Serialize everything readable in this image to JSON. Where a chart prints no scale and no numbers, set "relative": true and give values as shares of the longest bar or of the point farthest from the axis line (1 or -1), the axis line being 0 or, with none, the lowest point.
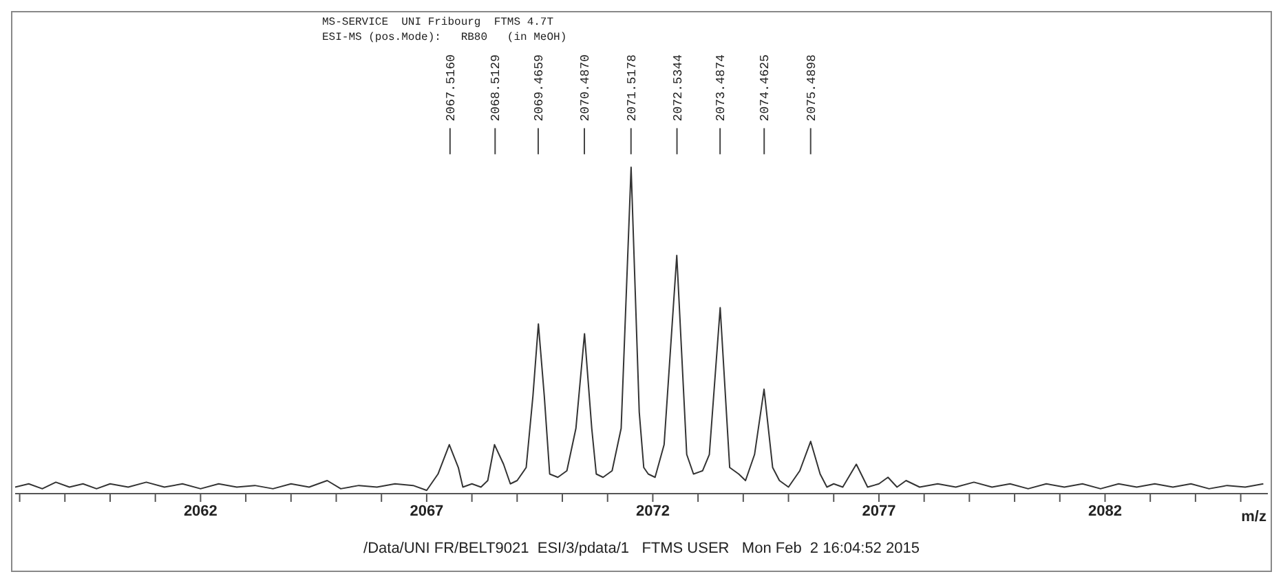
{
  "chart_data": {
    "type": "line",
    "title": "MS-SERVICE  UNI Fribourg  FTMS 4.7T",
    "subtitle": "ESI-MS (pos.Mode):   RB80   (in MeOH)",
    "xlabel": "m/z",
    "relative": true,
    "xlim": [
      2057.9,
      2085.6
    ],
    "xticks": [
      {
        "value": 2058,
        "label": null
      },
      {
        "value": 2059,
        "label": null
      },
      {
        "value": 2060,
        "label": null
      },
      {
        "value": 2061,
        "label": null
      },
      2062,
      {
        "value": 2063,
        "label": null
      },
      {
        "value": 2064,
        "label": null
      },
      {
        "value": 2065,
        "label": null
      },
      {
        "value": 2066,
        "label": null
      },
      2067,
      {
        "value": 2068,
        "label": null
      },
      {
        "value": 2069,
        "label": null
      },
      {
        "value": 2070,
        "label": null
      },
      {
        "value": 2071,
        "label": null
      },
      2072,
      {
        "value": 2073,
        "label": null
      },
      {
        "value": 2074,
        "label": null
      },
      {
        "value": 2075,
        "label": null
      },
      {
        "value": 2076,
        "label": null
      },
      2077,
      {
        "value": 2078,
        "label": null
      },
      {
        "value": 2079,
        "label": null
      },
      {
        "value": 2080,
        "label": null
      },
      {
        "value": 2081,
        "label": null
      },
      2082,
      {
        "value": 2083,
        "label": null
      },
      {
        "value": 2084,
        "label": null
      },
      {
        "value": 2085,
        "label": null
      }
    ],
    "grid": false,
    "legend": false,
    "marker": "none",
    "line_style": "solid",
    "series": [
      {
        "color": "#333333",
        "x": [
          2057.9,
          2058.2,
          2058.5,
          2058.8,
          2059.1,
          2059.4,
          2059.7,
          2060.0,
          2060.4,
          2060.8,
          2061.2,
          2061.6,
          2062.0,
          2062.4,
          2062.8,
          2063.2,
          2063.6,
          2064.0,
          2064.4,
          2064.8,
          2065.1,
          2065.5,
          2065.9,
          2066.3,
          2066.7,
          2067.0,
          2067.25,
          2067.5,
          2067.7,
          2067.8,
          2068.0,
          2068.2,
          2068.35,
          2068.5,
          2068.7,
          2068.85,
          2069.0,
          2069.2,
          2069.35,
          2069.47,
          2069.6,
          2069.72,
          2069.9,
          2070.1,
          2070.3,
          2070.49,
          2070.65,
          2070.75,
          2070.9,
          2071.1,
          2071.3,
          2071.52,
          2071.7,
          2071.8,
          2071.9,
          2072.05,
          2072.25,
          2072.53,
          2072.75,
          2072.9,
          2073.1,
          2073.25,
          2073.49,
          2073.7,
          2073.9,
          2074.05,
          2074.25,
          2074.46,
          2074.65,
          2074.8,
          2075.0,
          2075.25,
          2075.49,
          2075.7,
          2075.85,
          2076.0,
          2076.2,
          2076.5,
          2076.75,
          2077.0,
          2077.2,
          2077.4,
          2077.6,
          2077.9,
          2078.3,
          2078.7,
          2079.1,
          2079.5,
          2079.9,
          2080.3,
          2080.7,
          2081.1,
          2081.5,
          2081.9,
          2082.3,
          2082.7,
          2083.1,
          2083.5,
          2083.9,
          2084.3,
          2084.7,
          2085.1,
          2085.5
        ],
        "values": [
          0.02,
          0.03,
          0.015,
          0.035,
          0.02,
          0.03,
          0.015,
          0.03,
          0.02,
          0.035,
          0.02,
          0.03,
          0.015,
          0.03,
          0.02,
          0.025,
          0.015,
          0.03,
          0.02,
          0.04,
          0.015,
          0.025,
          0.02,
          0.03,
          0.025,
          0.01,
          0.06,
          0.15,
          0.08,
          0.02,
          0.03,
          0.02,
          0.04,
          0.15,
          0.09,
          0.03,
          0.04,
          0.08,
          0.3,
          0.52,
          0.3,
          0.06,
          0.05,
          0.07,
          0.2,
          0.49,
          0.2,
          0.06,
          0.05,
          0.07,
          0.2,
          1,
          0.25,
          0.08,
          0.06,
          0.05,
          0.15,
          0.73,
          0.12,
          0.06,
          0.07,
          0.12,
          0.57,
          0.08,
          0.06,
          0.04,
          0.12,
          0.32,
          0.08,
          0.04,
          0.02,
          0.07,
          0.16,
          0.06,
          0.02,
          0.03,
          0.02,
          0.09,
          0.02,
          0.03,
          0.05,
          0.02,
          0.04,
          0.02,
          0.03,
          0.02,
          0.035,
          0.02,
          0.03,
          0.015,
          0.03,
          0.02,
          0.03,
          0.015,
          0.03,
          0.02,
          0.03,
          0.02,
          0.03,
          0.015,
          0.025,
          0.02,
          0.03
        ]
      }
    ],
    "annotations": [
      {
        "text": "2067.5160",
        "x": 2067.516
      },
      {
        "text": "2068.5129",
        "x": 2068.5129
      },
      {
        "text": "2069.4659",
        "x": 2069.4659
      },
      {
        "text": "2070.4870",
        "x": 2070.487
      },
      {
        "text": "2071.5178",
        "x": 2071.5178
      },
      {
        "text": "2072.5344",
        "x": 2072.5344
      },
      {
        "text": "2073.4874",
        "x": 2073.4874
      },
      {
        "text": "2074.4625",
        "x": 2074.4625
      },
      {
        "text": "2075.4898",
        "x": 2075.4898
      },
      "/Data/UNI FR/BELT9021  ESI/3/pdata/1   FTMS USER   Mon Feb  2 16:04:52 2015"
    ]
  }
}
